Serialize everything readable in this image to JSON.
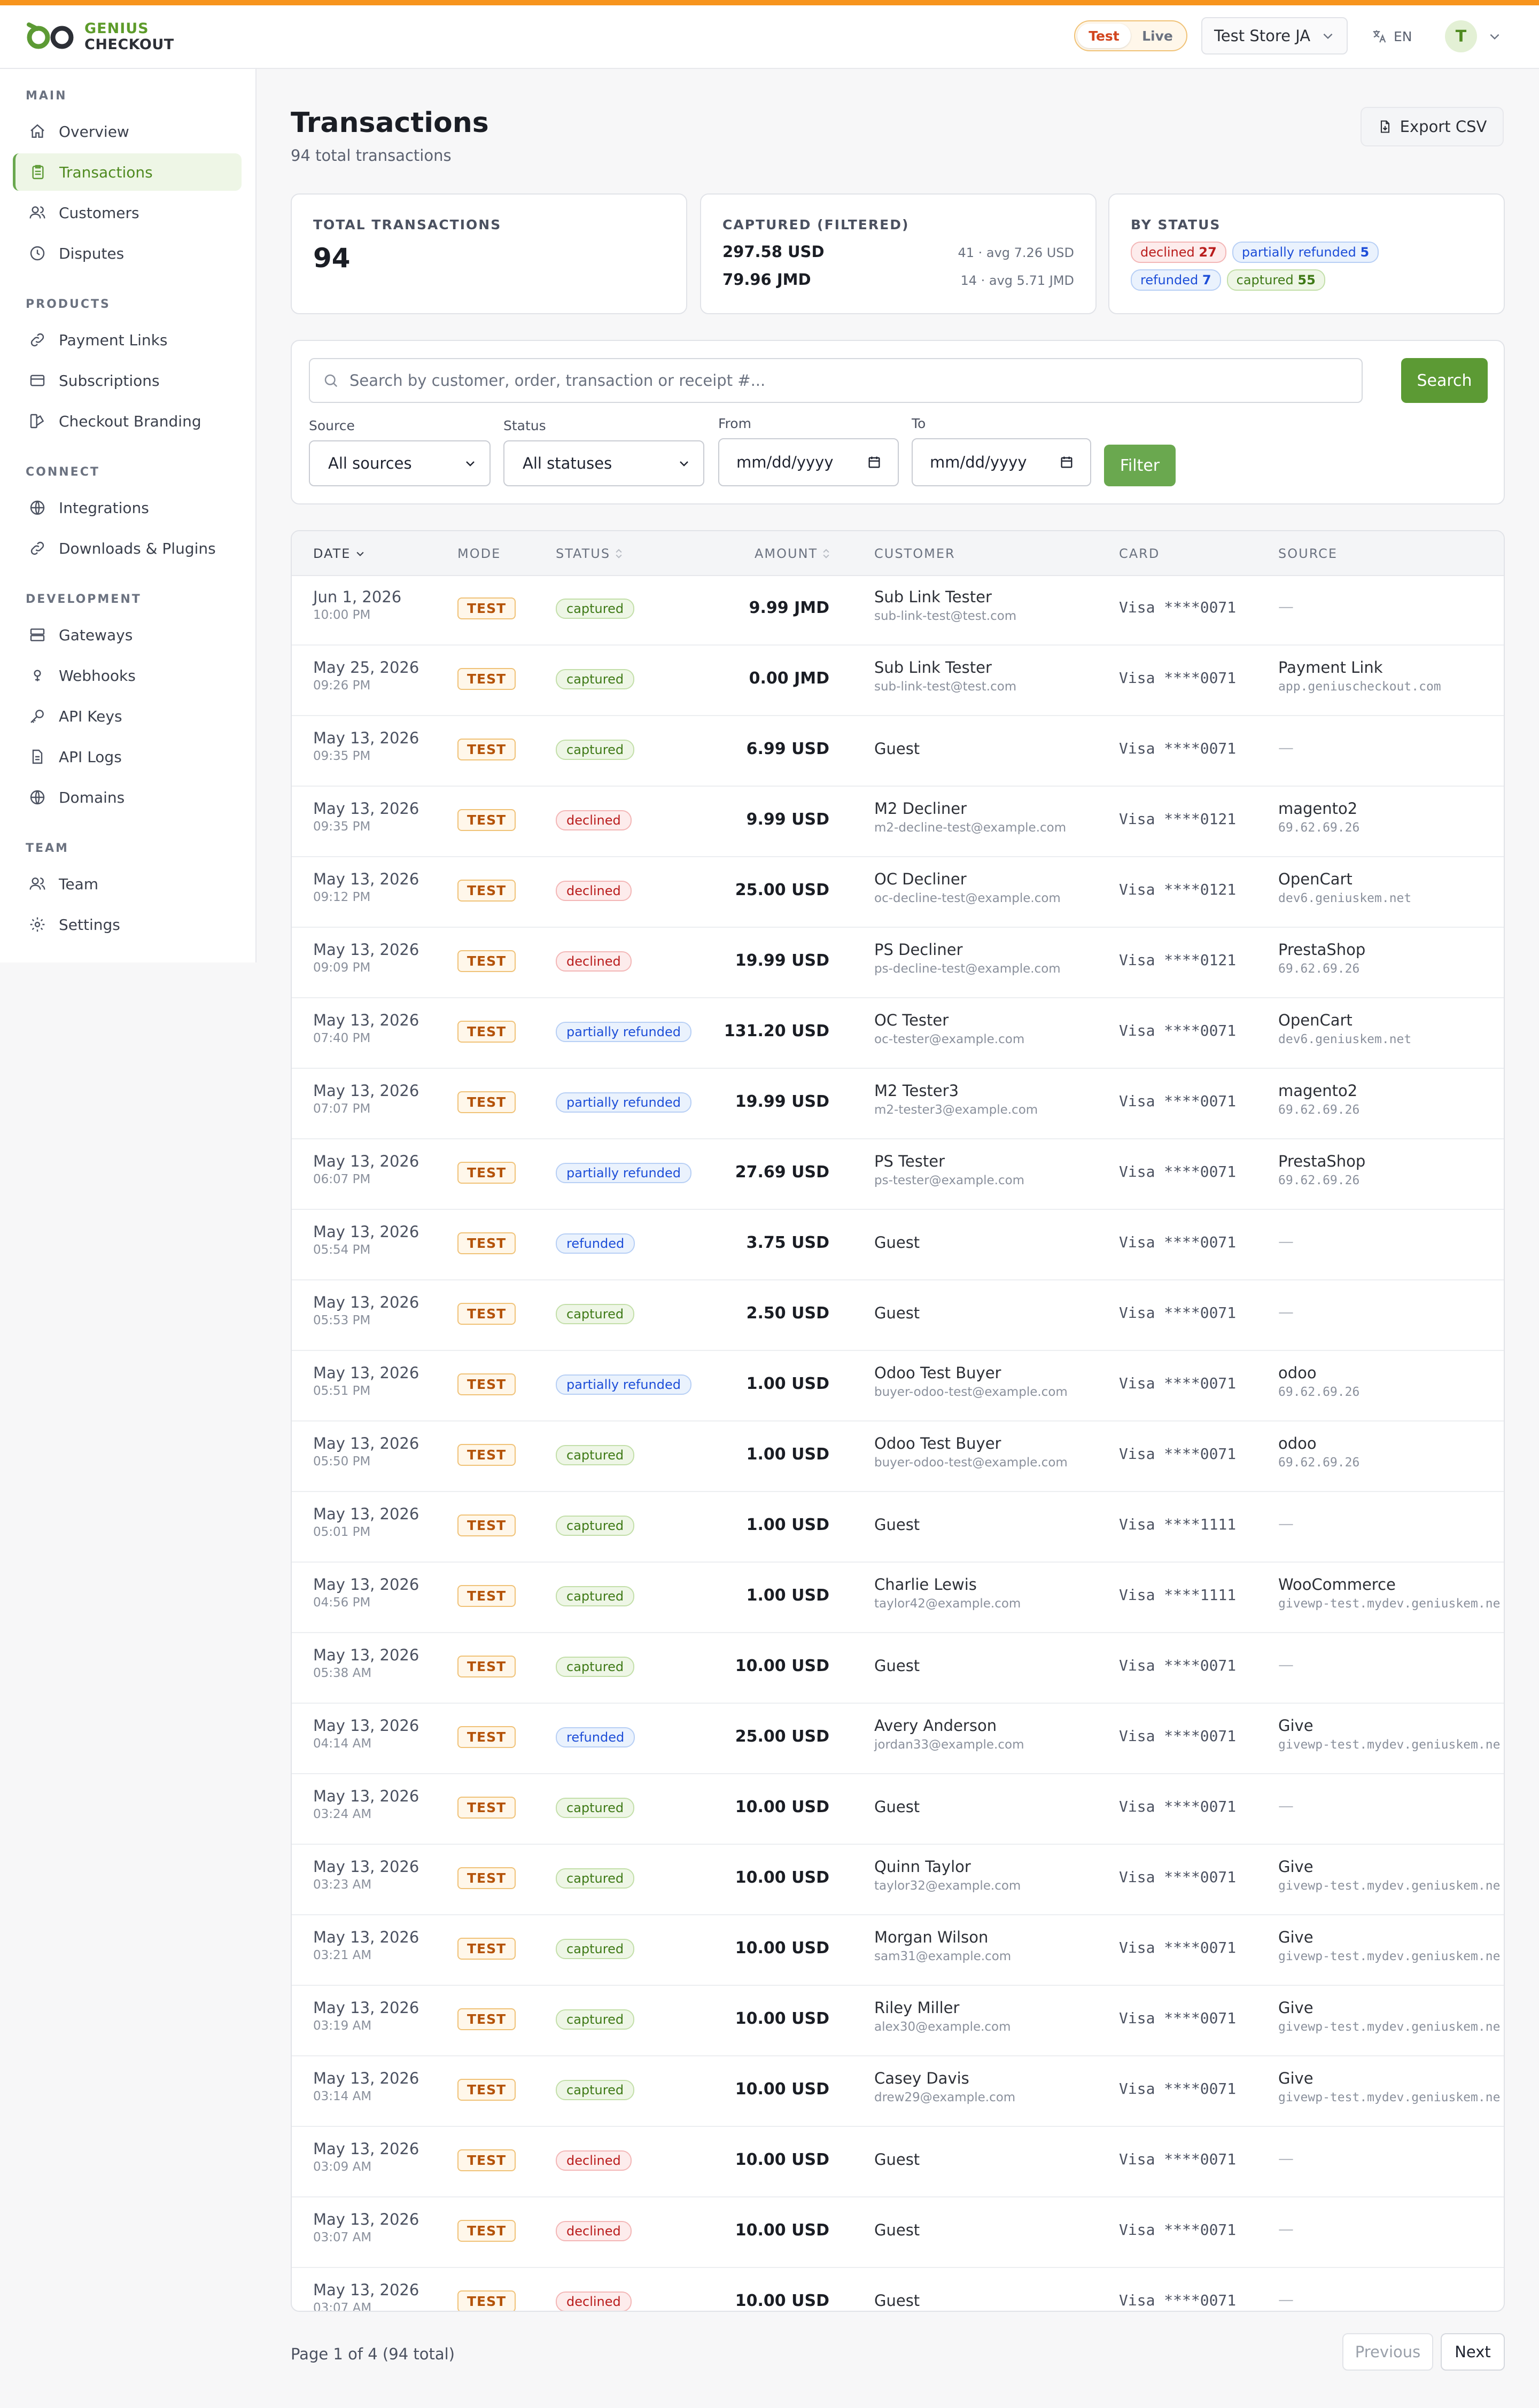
{
  "brand": {
    "line1": "GENIUS",
    "line2": "CHECKOUT",
    "accent": "#f7941d",
    "green": "#5c9a34"
  },
  "header": {
    "mode_test": "Test",
    "mode_live": "Live",
    "store": "Test Store JA",
    "language": "EN",
    "avatar_initial": "T"
  },
  "sidebar": {
    "sections": [
      {
        "title": "MAIN",
        "items": [
          {
            "label": "Overview",
            "icon": "home-icon"
          },
          {
            "label": "Transactions",
            "icon": "clipboard-icon",
            "active": true
          },
          {
            "label": "Customers",
            "icon": "users-icon"
          },
          {
            "label": "Disputes",
            "icon": "clock-icon"
          }
        ]
      },
      {
        "title": "PRODUCTS",
        "items": [
          {
            "label": "Payment Links",
            "icon": "link-icon"
          },
          {
            "label": "Subscriptions",
            "icon": "card-icon"
          },
          {
            "label": "Checkout Branding",
            "icon": "palette-icon"
          }
        ]
      },
      {
        "title": "CONNECT",
        "items": [
          {
            "label": "Integrations",
            "icon": "globe-icon"
          },
          {
            "label": "Downloads & Plugins",
            "icon": "link-icon"
          }
        ]
      },
      {
        "title": "DEVELOPMENT",
        "items": [
          {
            "label": "Gateways",
            "icon": "server-icon"
          },
          {
            "label": "Webhooks",
            "icon": "webhook-icon"
          },
          {
            "label": "API Keys",
            "icon": "key-icon"
          },
          {
            "label": "API Logs",
            "icon": "document-icon"
          },
          {
            "label": "Domains",
            "icon": "globe-icon"
          }
        ]
      },
      {
        "title": "TEAM",
        "items": [
          {
            "label": "Team",
            "icon": "users-icon"
          },
          {
            "label": "Settings",
            "icon": "gear-icon"
          }
        ]
      }
    ]
  },
  "page": {
    "title": "Transactions",
    "subtitle": "94 total transactions",
    "export_label": "Export CSV"
  },
  "stats": {
    "total_label": "TOTAL TRANSACTIONS",
    "total_value": "94",
    "captured_label": "CAPTURED (FILTERED)",
    "captured_rows": [
      {
        "amount": "297.58 USD",
        "meta": "41 · avg 7.26 USD"
      },
      {
        "amount": "79.96 JMD",
        "meta": "14 · avg 5.71 JMD"
      }
    ],
    "by_status_label": "BY STATUS",
    "by_status": [
      {
        "name": "declined",
        "count": "27",
        "kind": "declined"
      },
      {
        "name": "partially refunded",
        "count": "5",
        "kind": "partial"
      },
      {
        "name": "refunded",
        "count": "7",
        "kind": "refunded"
      },
      {
        "name": "captured",
        "count": "55",
        "kind": "captured"
      }
    ]
  },
  "filters": {
    "search_placeholder": "Search by customer, order, transaction or receipt #...",
    "search_button": "Search",
    "source_label": "Source",
    "source_value": "All sources",
    "status_label": "Status",
    "status_value": "All statuses",
    "from_label": "From",
    "from_value": "mm/dd/yyyy",
    "to_label": "To",
    "to_value": "mm/dd/yyyy",
    "filter_button": "Filter"
  },
  "table": {
    "columns": {
      "date": "DATE",
      "mode": "MODE",
      "status": "STATUS",
      "amount": "AMOUNT",
      "customer": "CUSTOMER",
      "card": "CARD",
      "source": "SOURCE"
    },
    "rows": [
      {
        "date": "Jun 1, 2026",
        "time": "10:00 PM",
        "mode": "TEST",
        "status": "captured",
        "amount": "9.99 JMD",
        "customer": "Sub Link Tester",
        "email": "sub-link-test@test.com",
        "card": "Visa ****0071",
        "source": "",
        "host": ""
      },
      {
        "date": "May 25, 2026",
        "time": "09:26 PM",
        "mode": "TEST",
        "status": "captured",
        "amount": "0.00 JMD",
        "customer": "Sub Link Tester",
        "email": "sub-link-test@test.com",
        "card": "Visa ****0071",
        "source": "Payment Link",
        "host": "app.geniuscheckout.com"
      },
      {
        "date": "May 13, 2026",
        "time": "09:35 PM",
        "mode": "TEST",
        "status": "captured",
        "amount": "6.99 USD",
        "customer": "Guest",
        "email": "",
        "card": "Visa ****0071",
        "source": "",
        "host": ""
      },
      {
        "date": "May 13, 2026",
        "time": "09:35 PM",
        "mode": "TEST",
        "status": "declined",
        "amount": "9.99 USD",
        "customer": "M2 Decliner",
        "email": "m2-decline-test@example.com",
        "card": "Visa ****0121",
        "source": "magento2",
        "host": "69.62.69.26"
      },
      {
        "date": "May 13, 2026",
        "time": "09:12 PM",
        "mode": "TEST",
        "status": "declined",
        "amount": "25.00 USD",
        "customer": "OC Decliner",
        "email": "oc-decline-test@example.com",
        "card": "Visa ****0121",
        "source": "OpenCart",
        "host": "dev6.geniuskem.net"
      },
      {
        "date": "May 13, 2026",
        "time": "09:09 PM",
        "mode": "TEST",
        "status": "declined",
        "amount": "19.99 USD",
        "customer": "PS Decliner",
        "email": "ps-decline-test@example.com",
        "card": "Visa ****0121",
        "source": "PrestaShop",
        "host": "69.62.69.26"
      },
      {
        "date": "May 13, 2026",
        "time": "07:40 PM",
        "mode": "TEST",
        "status": "partially refunded",
        "amount": "131.20 USD",
        "customer": "OC Tester",
        "email": "oc-tester@example.com",
        "card": "Visa ****0071",
        "source": "OpenCart",
        "host": "dev6.geniuskem.net"
      },
      {
        "date": "May 13, 2026",
        "time": "07:07 PM",
        "mode": "TEST",
        "status": "partially refunded",
        "amount": "19.99 USD",
        "customer": "M2 Tester3",
        "email": "m2-tester3@example.com",
        "card": "Visa ****0071",
        "source": "magento2",
        "host": "69.62.69.26"
      },
      {
        "date": "May 13, 2026",
        "time": "06:07 PM",
        "mode": "TEST",
        "status": "partially refunded",
        "amount": "27.69 USD",
        "customer": "PS Tester",
        "email": "ps-tester@example.com",
        "card": "Visa ****0071",
        "source": "PrestaShop",
        "host": "69.62.69.26"
      },
      {
        "date": "May 13, 2026",
        "time": "05:54 PM",
        "mode": "TEST",
        "status": "refunded",
        "amount": "3.75 USD",
        "customer": "Guest",
        "email": "",
        "card": "Visa ****0071",
        "source": "",
        "host": ""
      },
      {
        "date": "May 13, 2026",
        "time": "05:53 PM",
        "mode": "TEST",
        "status": "captured",
        "amount": "2.50 USD",
        "customer": "Guest",
        "email": "",
        "card": "Visa ****0071",
        "source": "",
        "host": ""
      },
      {
        "date": "May 13, 2026",
        "time": "05:51 PM",
        "mode": "TEST",
        "status": "partially refunded",
        "amount": "1.00 USD",
        "customer": "Odoo Test Buyer",
        "email": "buyer-odoo-test@example.com",
        "card": "Visa ****0071",
        "source": "odoo",
        "host": "69.62.69.26"
      },
      {
        "date": "May 13, 2026",
        "time": "05:50 PM",
        "mode": "TEST",
        "status": "captured",
        "amount": "1.00 USD",
        "customer": "Odoo Test Buyer",
        "email": "buyer-odoo-test@example.com",
        "card": "Visa ****0071",
        "source": "odoo",
        "host": "69.62.69.26"
      },
      {
        "date": "May 13, 2026",
        "time": "05:01 PM",
        "mode": "TEST",
        "status": "captured",
        "amount": "1.00 USD",
        "customer": "Guest",
        "email": "",
        "card": "Visa ****1111",
        "source": "",
        "host": ""
      },
      {
        "date": "May 13, 2026",
        "time": "04:56 PM",
        "mode": "TEST",
        "status": "captured",
        "amount": "1.00 USD",
        "customer": "Charlie Lewis",
        "email": "taylor42@example.com",
        "card": "Visa ****1111",
        "source": "WooCommerce",
        "host": "givewp-test.mydev.geniuskem.ne"
      },
      {
        "date": "May 13, 2026",
        "time": "05:38 AM",
        "mode": "TEST",
        "status": "captured",
        "amount": "10.00 USD",
        "customer": "Guest",
        "email": "",
        "card": "Visa ****0071",
        "source": "",
        "host": ""
      },
      {
        "date": "May 13, 2026",
        "time": "04:14 AM",
        "mode": "TEST",
        "status": "refunded",
        "amount": "25.00 USD",
        "customer": "Avery Anderson",
        "email": "jordan33@example.com",
        "card": "Visa ****0071",
        "source": "Give",
        "host": "givewp-test.mydev.geniuskem.ne"
      },
      {
        "date": "May 13, 2026",
        "time": "03:24 AM",
        "mode": "TEST",
        "status": "captured",
        "amount": "10.00 USD",
        "customer": "Guest",
        "email": "",
        "card": "Visa ****0071",
        "source": "",
        "host": ""
      },
      {
        "date": "May 13, 2026",
        "time": "03:23 AM",
        "mode": "TEST",
        "status": "captured",
        "amount": "10.00 USD",
        "customer": "Quinn Taylor",
        "email": "taylor32@example.com",
        "card": "Visa ****0071",
        "source": "Give",
        "host": "givewp-test.mydev.geniuskem.ne"
      },
      {
        "date": "May 13, 2026",
        "time": "03:21 AM",
        "mode": "TEST",
        "status": "captured",
        "amount": "10.00 USD",
        "customer": "Morgan Wilson",
        "email": "sam31@example.com",
        "card": "Visa ****0071",
        "source": "Give",
        "host": "givewp-test.mydev.geniuskem.ne"
      },
      {
        "date": "May 13, 2026",
        "time": "03:19 AM",
        "mode": "TEST",
        "status": "captured",
        "amount": "10.00 USD",
        "customer": "Riley Miller",
        "email": "alex30@example.com",
        "card": "Visa ****0071",
        "source": "Give",
        "host": "givewp-test.mydev.geniuskem.ne"
      },
      {
        "date": "May 13, 2026",
        "time": "03:14 AM",
        "mode": "TEST",
        "status": "captured",
        "amount": "10.00 USD",
        "customer": "Casey Davis",
        "email": "drew29@example.com",
        "card": "Visa ****0071",
        "source": "Give",
        "host": "givewp-test.mydev.geniuskem.ne"
      },
      {
        "date": "May 13, 2026",
        "time": "03:09 AM",
        "mode": "TEST",
        "status": "declined",
        "amount": "10.00 USD",
        "customer": "Guest",
        "email": "",
        "card": "Visa ****0071",
        "source": "",
        "host": ""
      },
      {
        "date": "May 13, 2026",
        "time": "03:07 AM",
        "mode": "TEST",
        "status": "declined",
        "amount": "10.00 USD",
        "customer": "Guest",
        "email": "",
        "card": "Visa ****0071",
        "source": "",
        "host": ""
      },
      {
        "date": "May 13, 2026",
        "time": "03:07 AM",
        "mode": "TEST",
        "status": "declined",
        "amount": "10.00 USD",
        "customer": "Guest",
        "email": "",
        "card": "Visa ****0071",
        "source": "",
        "host": ""
      }
    ]
  },
  "pagination": {
    "summary": "Page 1 of 4 (94 total)",
    "previous": "Previous",
    "next": "Next"
  }
}
